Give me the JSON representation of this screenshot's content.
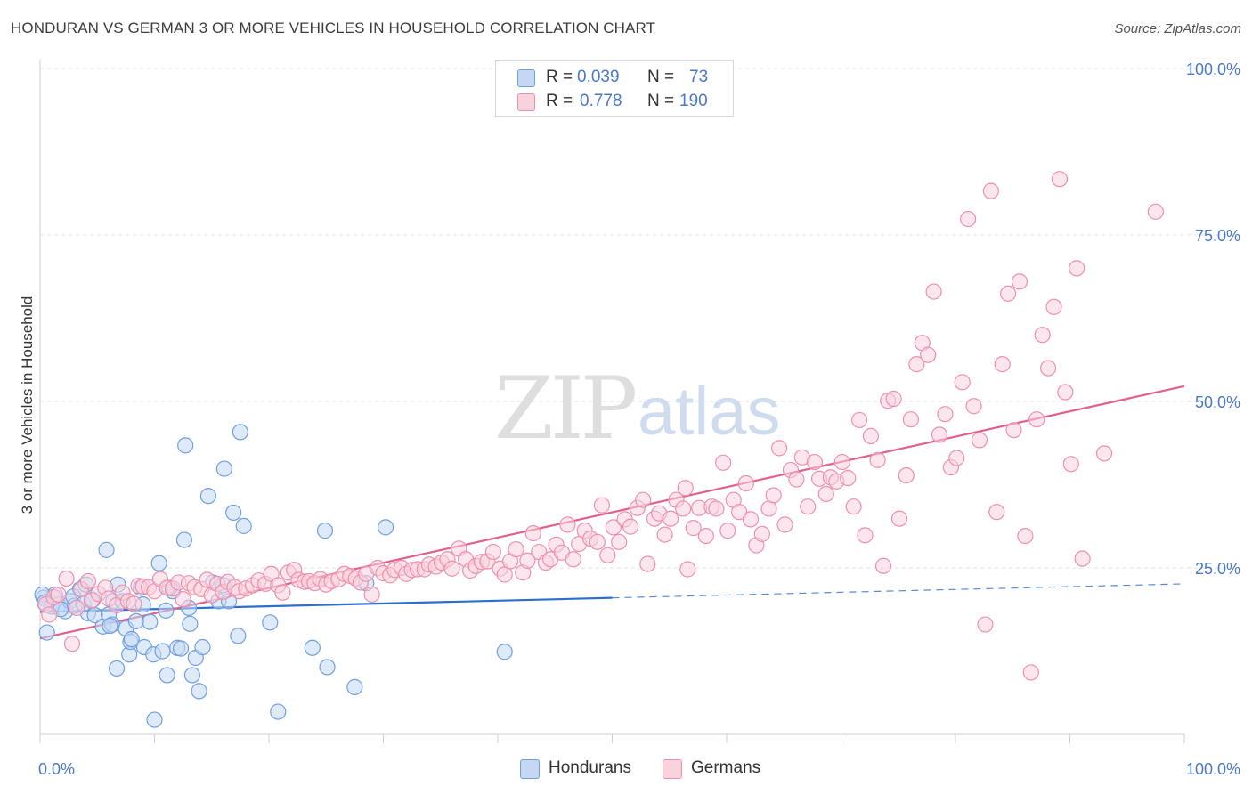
{
  "title": "HONDURAN VS GERMAN 3 OR MORE VEHICLES IN HOUSEHOLD CORRELATION CHART",
  "source": "Source: ZipAtlas.com",
  "watermark": {
    "zip": "ZIP",
    "atlas": "atlas"
  },
  "legend": {
    "rows": [
      {
        "r_label": "R =",
        "r_value": "0.039",
        "n_label": "N =",
        "n_value": "73",
        "color": "#a9c6f0"
      },
      {
        "r_label": "R =",
        "r_value": "0.778",
        "n_label": "N =",
        "n_value": "190",
        "color": "#f5b6c8"
      }
    ]
  },
  "bottom_legend": [
    {
      "label": "Hondurans",
      "color": "#a9c6f0"
    },
    {
      "label": "Germans",
      "color": "#f5b6c8"
    }
  ],
  "chart_data": {
    "type": "scatter",
    "title": "HONDURAN VS GERMAN 3 OR MORE VEHICLES IN HOUSEHOLD CORRELATION CHART",
    "xlabel": "",
    "ylabel": "3 or more Vehicles in Household",
    "xlim": [
      0,
      100
    ],
    "ylim": [
      0,
      100
    ],
    "x_tick_labels": [
      "0.0%",
      "100.0%"
    ],
    "y_tick_labels": [
      "25.0%",
      "50.0%",
      "75.0%",
      "100.0%"
    ],
    "y_ticks": [
      25,
      50,
      75,
      100
    ],
    "grid": true,
    "legend_position": "top-center",
    "series": [
      {
        "name": "Hondurans",
        "color": "#6f9fe0",
        "fill": "#c4d8f4",
        "trend_color": "#2c6fd0",
        "trend": {
          "x": [
            0,
            50
          ],
          "y": [
            18.4,
            20.5
          ],
          "dashed_to": [
            100,
            22.6
          ]
        },
        "points": [
          [
            0.3,
            20.5
          ],
          [
            0.6,
            15.3
          ],
          [
            1.0,
            19.2
          ],
          [
            1.3,
            21.0
          ],
          [
            1.6,
            19.5
          ],
          [
            2.2,
            18.5
          ],
          [
            2.6,
            20.0
          ],
          [
            3.0,
            19.3
          ],
          [
            3.5,
            21.8
          ],
          [
            4.0,
            22.5
          ],
          [
            4.2,
            18.2
          ],
          [
            4.8,
            17.9
          ],
          [
            5.5,
            16.2
          ],
          [
            6.0,
            18.0
          ],
          [
            6.3,
            16.5
          ],
          [
            6.4,
            20.0
          ],
          [
            5.8,
            27.7
          ],
          [
            6.7,
            9.9
          ],
          [
            6.8,
            22.5
          ],
          [
            7.2,
            20.0
          ],
          [
            7.5,
            15.9
          ],
          [
            7.8,
            12.0
          ],
          [
            7.9,
            13.9
          ],
          [
            8.0,
            14.3
          ],
          [
            8.4,
            17.0
          ],
          [
            8.8,
            22.0
          ],
          [
            9.0,
            19.5
          ],
          [
            9.1,
            13.1
          ],
          [
            9.6,
            16.9
          ],
          [
            9.9,
            12.0
          ],
          [
            10.0,
            2.2
          ],
          [
            10.4,
            25.7
          ],
          [
            10.7,
            12.5
          ],
          [
            11.0,
            18.6
          ],
          [
            11.1,
            8.9
          ],
          [
            11.6,
            21.5
          ],
          [
            12.0,
            13.0
          ],
          [
            12.3,
            12.9
          ],
          [
            12.6,
            29.2
          ],
          [
            12.7,
            43.4
          ],
          [
            13.0,
            19.0
          ],
          [
            13.1,
            16.6
          ],
          [
            13.3,
            8.9
          ],
          [
            13.6,
            11.5
          ],
          [
            13.9,
            6.5
          ],
          [
            14.2,
            13.1
          ],
          [
            14.7,
            35.8
          ],
          [
            15.6,
            20.0
          ],
          [
            16.0,
            22.4
          ],
          [
            16.1,
            39.9
          ],
          [
            16.5,
            20.0
          ],
          [
            16.9,
            33.3
          ],
          [
            17.3,
            14.8
          ],
          [
            17.5,
            45.4
          ],
          [
            17.8,
            31.3
          ],
          [
            20.1,
            16.8
          ],
          [
            20.8,
            3.4
          ],
          [
            23.8,
            13.0
          ],
          [
            24.9,
            30.6
          ],
          [
            25.1,
            10.1
          ],
          [
            27.5,
            7.1
          ],
          [
            28.5,
            22.7
          ],
          [
            30.2,
            31.1
          ],
          [
            40.6,
            12.4
          ],
          [
            0.2,
            21.0
          ],
          [
            0.4,
            19.8
          ],
          [
            1.8,
            18.8
          ],
          [
            2.9,
            20.7
          ],
          [
            3.8,
            19.6
          ],
          [
            4.6,
            20.2
          ],
          [
            6.1,
            16.3
          ],
          [
            11.3,
            22.0
          ],
          [
            15.1,
            22.8
          ]
        ]
      },
      {
        "name": "Germans",
        "color": "#ee90ab",
        "fill": "#f9d2de",
        "trend_color": "#e2618a",
        "trend": {
          "x": [
            0,
            100
          ],
          "y": [
            14.4,
            52.3
          ]
        },
        "points": [
          [
            0.5,
            19.5
          ],
          [
            0.8,
            18.0
          ],
          [
            1.2,
            20.6
          ],
          [
            1.6,
            21.0
          ],
          [
            2.3,
            23.4
          ],
          [
            2.8,
            13.6
          ],
          [
            3.2,
            19.0
          ],
          [
            3.6,
            21.8
          ],
          [
            4.2,
            23.0
          ],
          [
            4.5,
            20.1
          ],
          [
            5.1,
            21.1
          ],
          [
            5.7,
            22.0
          ],
          [
            6.0,
            20.4
          ],
          [
            6.7,
            19.4
          ],
          [
            7.2,
            21.3
          ],
          [
            7.7,
            20.0
          ],
          [
            8.2,
            19.6
          ],
          [
            8.6,
            22.3
          ],
          [
            9.0,
            22.2
          ],
          [
            9.5,
            22.1
          ],
          [
            10.0,
            21.5
          ],
          [
            10.5,
            23.3
          ],
          [
            11.1,
            22.0
          ],
          [
            11.6,
            21.9
          ],
          [
            12.1,
            22.8
          ],
          [
            12.5,
            20.3
          ],
          [
            13.0,
            22.7
          ],
          [
            13.5,
            22.1
          ],
          [
            14.1,
            21.8
          ],
          [
            14.6,
            23.2
          ],
          [
            15.0,
            20.9
          ],
          [
            15.5,
            22.6
          ],
          [
            16.0,
            21.4
          ],
          [
            16.4,
            22.9
          ],
          [
            17.0,
            22.1
          ],
          [
            17.4,
            21.5
          ],
          [
            18.0,
            21.9
          ],
          [
            18.6,
            22.4
          ],
          [
            19.1,
            23.1
          ],
          [
            19.7,
            22.6
          ],
          [
            20.2,
            24.1
          ],
          [
            20.8,
            22.4
          ],
          [
            21.2,
            21.3
          ],
          [
            21.7,
            24.3
          ],
          [
            22.2,
            24.7
          ],
          [
            22.6,
            23.2
          ],
          [
            23.1,
            22.9
          ],
          [
            23.5,
            23.0
          ],
          [
            24.0,
            22.7
          ],
          [
            24.5,
            23.3
          ],
          [
            25.0,
            22.5
          ],
          [
            25.5,
            23.0
          ],
          [
            26.1,
            23.3
          ],
          [
            26.6,
            24.1
          ],
          [
            27.1,
            23.8
          ],
          [
            27.6,
            23.4
          ],
          [
            28.0,
            22.8
          ],
          [
            28.5,
            24.1
          ],
          [
            29.0,
            21.0
          ],
          [
            29.5,
            25.0
          ],
          [
            30.0,
            24.2
          ],
          [
            30.6,
            23.9
          ],
          [
            31.0,
            24.7
          ],
          [
            31.6,
            25.0
          ],
          [
            32.0,
            24.1
          ],
          [
            32.5,
            24.7
          ],
          [
            33.0,
            24.8
          ],
          [
            33.6,
            24.8
          ],
          [
            34.0,
            25.5
          ],
          [
            34.6,
            25.2
          ],
          [
            35.1,
            25.8
          ],
          [
            35.6,
            26.3
          ],
          [
            36.0,
            24.9
          ],
          [
            36.6,
            27.9
          ],
          [
            37.2,
            26.3
          ],
          [
            37.6,
            24.6
          ],
          [
            38.1,
            25.3
          ],
          [
            38.6,
            25.9
          ],
          [
            39.1,
            26.0
          ],
          [
            39.6,
            27.4
          ],
          [
            40.2,
            24.9
          ],
          [
            40.6,
            24.0
          ],
          [
            41.1,
            26.0
          ],
          [
            41.6,
            27.8
          ],
          [
            42.2,
            24.3
          ],
          [
            42.6,
            26.1
          ],
          [
            43.1,
            30.2
          ],
          [
            43.6,
            27.4
          ],
          [
            44.2,
            25.8
          ],
          [
            44.6,
            26.3
          ],
          [
            45.1,
            28.5
          ],
          [
            45.6,
            27.3
          ],
          [
            46.1,
            31.5
          ],
          [
            46.6,
            26.3
          ],
          [
            47.1,
            28.6
          ],
          [
            47.6,
            30.6
          ],
          [
            48.1,
            29.4
          ],
          [
            48.7,
            28.9
          ],
          [
            49.1,
            34.4
          ],
          [
            49.6,
            26.9
          ],
          [
            50.1,
            31.1
          ],
          [
            50.6,
            28.9
          ],
          [
            51.1,
            32.3
          ],
          [
            51.6,
            31.2
          ],
          [
            52.2,
            34.0
          ],
          [
            52.7,
            35.2
          ],
          [
            53.1,
            25.6
          ],
          [
            53.7,
            32.4
          ],
          [
            54.1,
            33.2
          ],
          [
            54.6,
            30.0
          ],
          [
            55.1,
            32.4
          ],
          [
            55.6,
            35.2
          ],
          [
            56.2,
            33.9
          ],
          [
            56.6,
            24.8
          ],
          [
            57.1,
            31.0
          ],
          [
            57.6,
            34.0
          ],
          [
            58.2,
            29.8
          ],
          [
            58.7,
            34.2
          ],
          [
            59.1,
            33.9
          ],
          [
            59.7,
            40.8
          ],
          [
            60.1,
            30.6
          ],
          [
            60.6,
            35.2
          ],
          [
            61.1,
            33.4
          ],
          [
            61.7,
            37.7
          ],
          [
            62.1,
            32.3
          ],
          [
            62.6,
            28.4
          ],
          [
            63.1,
            30.1
          ],
          [
            63.7,
            33.9
          ],
          [
            64.1,
            35.9
          ],
          [
            64.6,
            43.0
          ],
          [
            65.1,
            31.5
          ],
          [
            65.6,
            39.7
          ],
          [
            66.1,
            38.3
          ],
          [
            66.6,
            41.6
          ],
          [
            67.1,
            34.2
          ],
          [
            67.7,
            40.9
          ],
          [
            68.1,
            38.4
          ],
          [
            68.7,
            36.1
          ],
          [
            69.1,
            38.6
          ],
          [
            69.6,
            38.0
          ],
          [
            70.1,
            40.9
          ],
          [
            70.6,
            38.5
          ],
          [
            71.1,
            34.2
          ],
          [
            71.6,
            47.2
          ],
          [
            72.1,
            29.9
          ],
          [
            72.6,
            44.8
          ],
          [
            73.2,
            41.2
          ],
          [
            73.7,
            25.3
          ],
          [
            74.1,
            50.1
          ],
          [
            74.6,
            50.4
          ],
          [
            75.1,
            32.4
          ],
          [
            75.7,
            38.9
          ],
          [
            76.1,
            47.3
          ],
          [
            76.6,
            55.6
          ],
          [
            77.1,
            58.8
          ],
          [
            77.6,
            57.0
          ],
          [
            78.1,
            66.5
          ],
          [
            78.6,
            45.0
          ],
          [
            79.1,
            48.1
          ],
          [
            79.6,
            40.1
          ],
          [
            80.1,
            41.5
          ],
          [
            80.6,
            52.9
          ],
          [
            81.1,
            77.4
          ],
          [
            81.6,
            49.3
          ],
          [
            82.1,
            44.2
          ],
          [
            82.6,
            16.5
          ],
          [
            83.1,
            81.6
          ],
          [
            83.6,
            33.4
          ],
          [
            84.1,
            55.6
          ],
          [
            84.6,
            66.2
          ],
          [
            85.1,
            45.7
          ],
          [
            85.6,
            68.0
          ],
          [
            86.1,
            29.8
          ],
          [
            86.6,
            9.3
          ],
          [
            87.1,
            47.3
          ],
          [
            87.6,
            60.0
          ],
          [
            88.1,
            55.0
          ],
          [
            88.6,
            64.2
          ],
          [
            89.1,
            83.4
          ],
          [
            89.6,
            51.4
          ],
          [
            90.1,
            40.6
          ],
          [
            90.6,
            70.0
          ],
          [
            91.1,
            26.4
          ],
          [
            93.0,
            42.2
          ],
          [
            97.5,
            78.5
          ],
          [
            56.4,
            37.0
          ]
        ]
      }
    ]
  }
}
